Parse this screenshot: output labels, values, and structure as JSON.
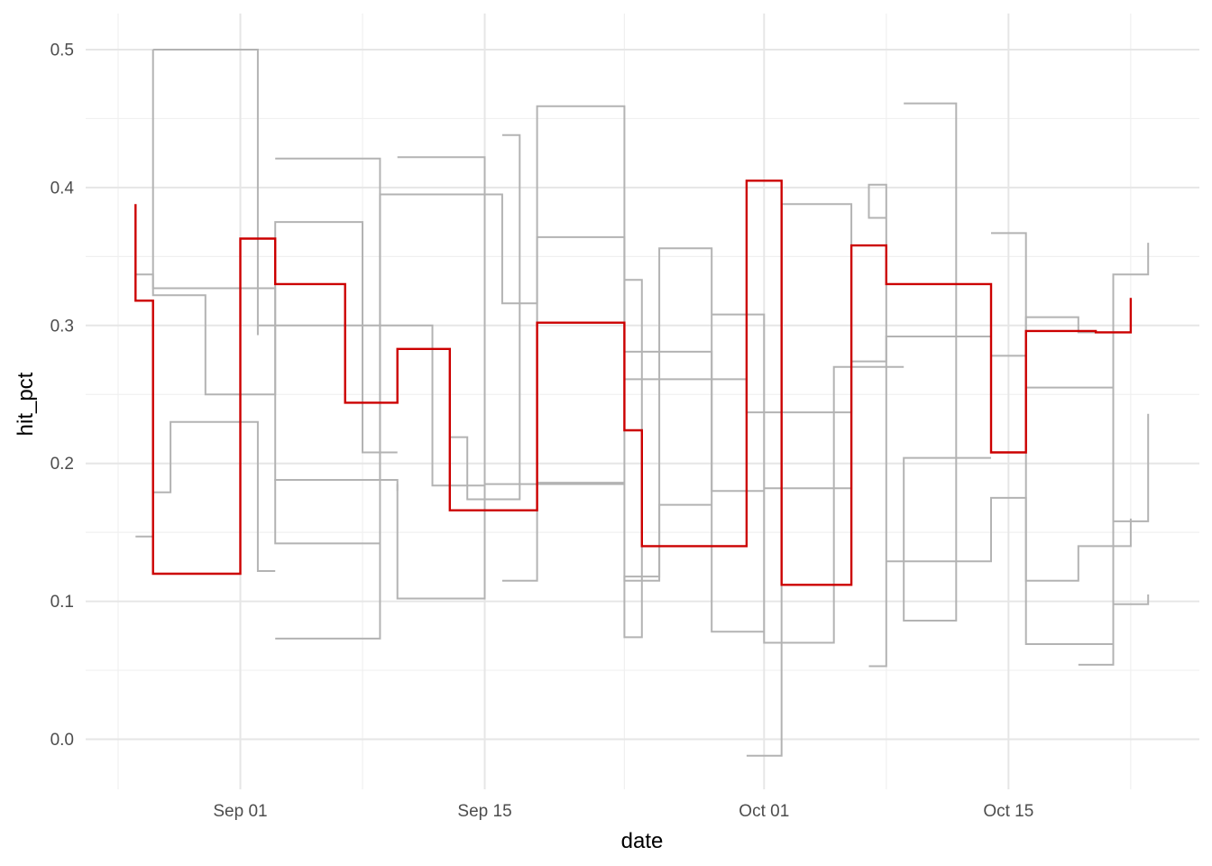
{
  "chart_data": {
    "type": "line",
    "style": "step",
    "xlabel": "date",
    "ylabel": "hit_pct",
    "x_ticks": [
      {
        "date": "2025-09-01",
        "label": "Sep 01"
      },
      {
        "date": "2025-09-15",
        "label": "Sep 15"
      },
      {
        "date": "2025-10-01",
        "label": "Oct 01"
      },
      {
        "date": "2025-10-15",
        "label": "Oct 15"
      }
    ],
    "y_ticks": [
      0.0,
      0.1,
      0.2,
      0.3,
      0.4,
      0.5
    ],
    "y_tick_labels": [
      "0.0",
      "0.1",
      "0.2",
      "0.3",
      "0.4",
      "0.5"
    ],
    "xlim": [
      "2025-08-25",
      "2025-10-24"
    ],
    "ylim": [
      -0.035,
      0.525
    ],
    "grid": true,
    "legend": "none",
    "colors": {
      "highlight": "#cc0000",
      "background_series": "#b3b3b3"
    },
    "series": [
      {
        "highlight": true,
        "points": [
          [
            "2025-08-26",
            0.388
          ],
          [
            "2025-08-26",
            0.318
          ],
          [
            "2025-08-27",
            0.318
          ],
          [
            "2025-08-27",
            0.12
          ],
          [
            "2025-09-01",
            0.12
          ],
          [
            "2025-09-01",
            0.363
          ],
          [
            "2025-09-03",
            0.363
          ],
          [
            "2025-09-03",
            0.33
          ],
          [
            "2025-09-07",
            0.33
          ],
          [
            "2025-09-07",
            0.244
          ],
          [
            "2025-09-10",
            0.244
          ],
          [
            "2025-09-10",
            0.283
          ],
          [
            "2025-09-13",
            0.283
          ],
          [
            "2025-09-13",
            0.166
          ],
          [
            "2025-09-18",
            0.166
          ],
          [
            "2025-09-18",
            0.302
          ],
          [
            "2025-09-23",
            0.302
          ],
          [
            "2025-09-23",
            0.224
          ],
          [
            "2025-09-24",
            0.224
          ],
          [
            "2025-09-24",
            0.14
          ],
          [
            "2025-09-30",
            0.14
          ],
          [
            "2025-09-30",
            0.405
          ],
          [
            "2025-10-02",
            0.405
          ],
          [
            "2025-10-02",
            0.112
          ],
          [
            "2025-10-06",
            0.112
          ],
          [
            "2025-10-06",
            0.358
          ],
          [
            "2025-10-08",
            0.358
          ],
          [
            "2025-10-08",
            0.33
          ],
          [
            "2025-10-14",
            0.33
          ],
          [
            "2025-10-14",
            0.208
          ],
          [
            "2025-10-16",
            0.208
          ],
          [
            "2025-10-16",
            0.296
          ],
          [
            "2025-10-20",
            0.296
          ],
          [
            "2025-10-20",
            0.295
          ],
          [
            "2025-10-22",
            0.295
          ],
          [
            "2025-10-22",
            0.32
          ]
        ]
      },
      {
        "highlight": false,
        "points": [
          [
            "2025-08-27",
            0.5
          ],
          [
            "2025-09-02",
            0.5
          ],
          [
            "2025-09-02",
            0.293
          ],
          [
            "2025-09-02",
            0.3
          ],
          [
            "2025-09-12",
            0.3
          ],
          [
            "2025-09-12",
            0.184
          ],
          [
            "2025-09-15",
            0.184
          ],
          [
            "2025-09-15",
            0.185
          ],
          [
            "2025-09-23",
            0.185
          ],
          [
            "2025-09-23",
            0.115
          ],
          [
            "2025-09-25",
            0.115
          ],
          [
            "2025-09-25",
            0.17
          ],
          [
            "2025-09-28",
            0.17
          ]
        ]
      },
      {
        "highlight": false,
        "points": [
          [
            "2025-08-27",
            0.5
          ],
          [
            "2025-08-27",
            0.327
          ],
          [
            "2025-09-03",
            0.327
          ],
          [
            "2025-09-03",
            0.188
          ],
          [
            "2025-09-10",
            0.188
          ],
          [
            "2025-09-10",
            0.18
          ]
        ]
      },
      {
        "highlight": false,
        "points": [
          [
            "2025-09-03",
            0.421
          ],
          [
            "2025-09-09",
            0.421
          ],
          [
            "2025-09-09",
            0.188
          ],
          [
            "2025-09-03",
            0.188
          ],
          [
            "2025-09-03",
            0.142
          ],
          [
            "2025-09-09",
            0.142
          ]
        ]
      },
      {
        "highlight": false,
        "points": [
          [
            "2025-09-03",
            0.073
          ],
          [
            "2025-09-09",
            0.073
          ],
          [
            "2025-09-09",
            0.395
          ],
          [
            "2025-09-16",
            0.395
          ],
          [
            "2025-09-16",
            0.316
          ],
          [
            "2025-09-18",
            0.316
          ],
          [
            "2025-09-18",
            0.459
          ],
          [
            "2025-09-23",
            0.459
          ],
          [
            "2025-09-23",
            0.186
          ],
          [
            "2025-09-18",
            0.186
          ]
        ]
      },
      {
        "highlight": false,
        "points": [
          [
            "2025-09-10",
            0.422
          ],
          [
            "2025-09-15",
            0.422
          ],
          [
            "2025-09-15",
            0.102
          ],
          [
            "2025-09-10",
            0.102
          ],
          [
            "2025-09-10",
            0.185
          ]
        ]
      },
      {
        "highlight": false,
        "points": [
          [
            "2025-09-16",
            0.438
          ],
          [
            "2025-09-17",
            0.438
          ],
          [
            "2025-09-17",
            0.174
          ],
          [
            "2025-09-14",
            0.174
          ],
          [
            "2025-09-14",
            0.219
          ],
          [
            "2025-09-13",
            0.219
          ]
        ]
      },
      {
        "highlight": false,
        "points": [
          [
            "2025-09-16",
            0.115
          ],
          [
            "2025-09-18",
            0.115
          ],
          [
            "2025-09-18",
            0.364
          ],
          [
            "2025-09-23",
            0.364
          ],
          [
            "2025-09-23",
            0.281
          ],
          [
            "2025-09-28",
            0.281
          ],
          [
            "2025-09-28",
            0.078
          ],
          [
            "2025-10-01",
            0.078
          ]
        ]
      },
      {
        "highlight": false,
        "points": [
          [
            "2025-09-23",
            0.333
          ],
          [
            "2025-09-24",
            0.333
          ],
          [
            "2025-09-24",
            0.074
          ],
          [
            "2025-09-23",
            0.074
          ],
          [
            "2025-09-23",
            0.118
          ],
          [
            "2025-09-25",
            0.118
          ],
          [
            "2025-09-25",
            0.356
          ],
          [
            "2025-09-28",
            0.356
          ],
          [
            "2025-09-28",
            0.18
          ],
          [
            "2025-10-01",
            0.18
          ]
        ]
      },
      {
        "highlight": false,
        "points": [
          [
            "2025-09-30",
            -0.012
          ],
          [
            "2025-10-02",
            -0.012
          ],
          [
            "2025-10-02",
            0.388
          ],
          [
            "2025-10-06",
            0.388
          ],
          [
            "2025-10-06",
            0.182
          ],
          [
            "2025-10-01",
            0.182
          ]
        ]
      },
      {
        "highlight": false,
        "points": [
          [
            "2025-09-28",
            0.308
          ],
          [
            "2025-10-01",
            0.308
          ],
          [
            "2025-10-01",
            0.07
          ],
          [
            "2025-10-05",
            0.07
          ],
          [
            "2025-10-05",
            0.27
          ],
          [
            "2025-10-09",
            0.27
          ]
        ]
      },
      {
        "highlight": false,
        "points": [
          [
            "2025-10-07",
            0.053
          ],
          [
            "2025-10-08",
            0.053
          ],
          [
            "2025-10-08",
            0.402
          ],
          [
            "2025-10-07",
            0.402
          ],
          [
            "2025-10-07",
            0.378
          ],
          [
            "2025-10-08",
            0.378
          ]
        ]
      },
      {
        "highlight": false,
        "points": [
          [
            "2025-10-09",
            0.461
          ],
          [
            "2025-10-12",
            0.461
          ],
          [
            "2025-10-12",
            0.086
          ],
          [
            "2025-10-09",
            0.086
          ],
          [
            "2025-10-09",
            0.204
          ],
          [
            "2025-10-14",
            0.204
          ]
        ]
      },
      {
        "highlight": false,
        "points": [
          [
            "2025-10-14",
            0.367
          ],
          [
            "2025-10-16",
            0.367
          ],
          [
            "2025-10-16",
            0.069
          ],
          [
            "2025-10-21",
            0.069
          ],
          [
            "2025-10-21",
            0.337
          ],
          [
            "2025-10-23",
            0.337
          ],
          [
            "2025-10-23",
            0.36
          ]
        ]
      },
      {
        "highlight": false,
        "points": [
          [
            "2025-08-26",
            0.147
          ],
          [
            "2025-08-27",
            0.147
          ],
          [
            "2025-08-27",
            0.179
          ],
          [
            "2025-08-28",
            0.179
          ],
          [
            "2025-08-28",
            0.23
          ],
          [
            "2025-09-02",
            0.23
          ],
          [
            "2025-09-02",
            0.122
          ],
          [
            "2025-09-03",
            0.122
          ]
        ]
      },
      {
        "highlight": false,
        "points": [
          [
            "2025-08-26",
            0.337
          ],
          [
            "2025-08-27",
            0.337
          ],
          [
            "2025-08-27",
            0.322
          ],
          [
            "2025-08-30",
            0.322
          ],
          [
            "2025-08-30",
            0.25
          ],
          [
            "2025-09-03",
            0.25
          ],
          [
            "2025-09-03",
            0.375
          ],
          [
            "2025-09-08",
            0.375
          ],
          [
            "2025-09-08",
            0.208
          ],
          [
            "2025-09-10",
            0.208
          ]
        ]
      },
      {
        "highlight": false,
        "points": [
          [
            "2025-09-23",
            0.261
          ],
          [
            "2025-09-30",
            0.261
          ],
          [
            "2025-09-30",
            0.237
          ],
          [
            "2025-10-06",
            0.237
          ],
          [
            "2025-10-06",
            0.274
          ],
          [
            "2025-10-08",
            0.274
          ],
          [
            "2025-10-08",
            0.292
          ],
          [
            "2025-10-14",
            0.292
          ],
          [
            "2025-10-14",
            0.278
          ],
          [
            "2025-10-16",
            0.278
          ],
          [
            "2025-10-16",
            0.306
          ],
          [
            "2025-10-19",
            0.306
          ],
          [
            "2025-10-19",
            0.295
          ],
          [
            "2025-10-22",
            0.295
          ]
        ]
      },
      {
        "highlight": false,
        "points": [
          [
            "2025-10-16",
            0.255
          ],
          [
            "2025-10-21",
            0.255
          ],
          [
            "2025-10-21",
            0.098
          ],
          [
            "2025-10-23",
            0.098
          ],
          [
            "2025-10-23",
            0.105
          ]
        ]
      },
      {
        "highlight": false,
        "points": [
          [
            "2025-10-19",
            0.054
          ],
          [
            "2025-10-21",
            0.054
          ],
          [
            "2025-10-21",
            0.158
          ],
          [
            "2025-10-23",
            0.158
          ],
          [
            "2025-10-23",
            0.236
          ]
        ]
      },
      {
        "highlight": false,
        "points": [
          [
            "2025-10-08",
            0.129
          ],
          [
            "2025-10-14",
            0.129
          ],
          [
            "2025-10-14",
            0.175
          ],
          [
            "2025-10-16",
            0.175
          ],
          [
            "2025-10-16",
            0.115
          ],
          [
            "2025-10-19",
            0.115
          ],
          [
            "2025-10-19",
            0.14
          ],
          [
            "2025-10-22",
            0.14
          ],
          [
            "2025-10-22",
            0.16
          ]
        ]
      }
    ]
  }
}
